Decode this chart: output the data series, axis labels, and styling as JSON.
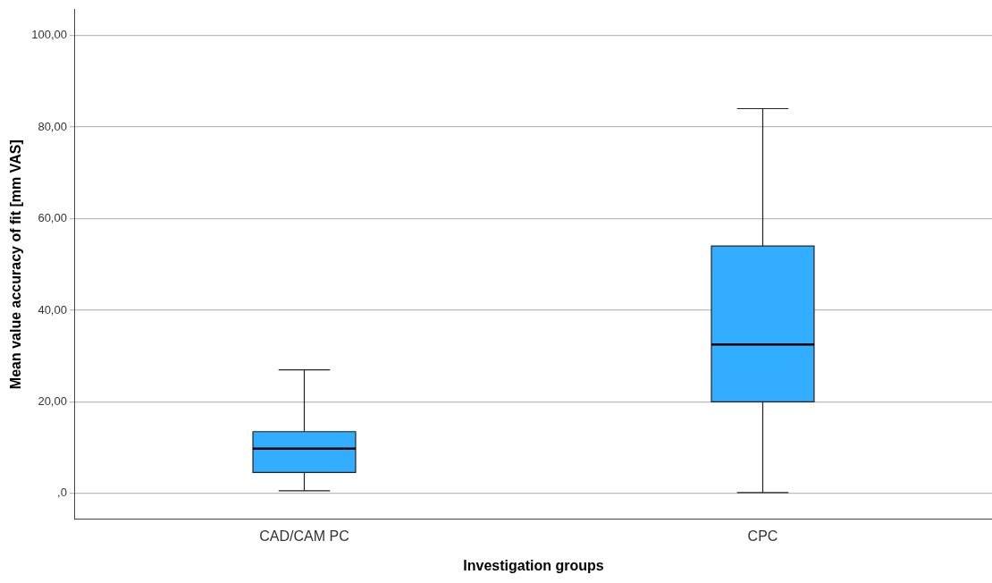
{
  "chart_data": {
    "type": "box",
    "xlabel": "Investigation groups",
    "ylabel": "Mean value accuracy of fit [mm VAS]",
    "categories": [
      "CAD/CAM PC",
      "CPC"
    ],
    "color": "#33adff",
    "boxes": [
      {
        "low": 0.6,
        "q1": 4.6,
        "median": 9.8,
        "q3": 13.5,
        "high": 27
      },
      {
        "low": 0.2,
        "q1": 20,
        "median": 32.5,
        "q3": 54,
        "high": 84
      }
    ],
    "ylim": [
      -5.6,
      105.6
    ],
    "yticks": [
      {
        "value": 0,
        "label": ",0"
      },
      {
        "value": 20,
        "label": "20,00"
      },
      {
        "value": 40,
        "label": "40,00"
      },
      {
        "value": 60,
        "label": "60,00"
      },
      {
        "value": 80,
        "label": "80,00"
      },
      {
        "value": 100,
        "label": "100,00"
      }
    ],
    "grid": "y"
  }
}
